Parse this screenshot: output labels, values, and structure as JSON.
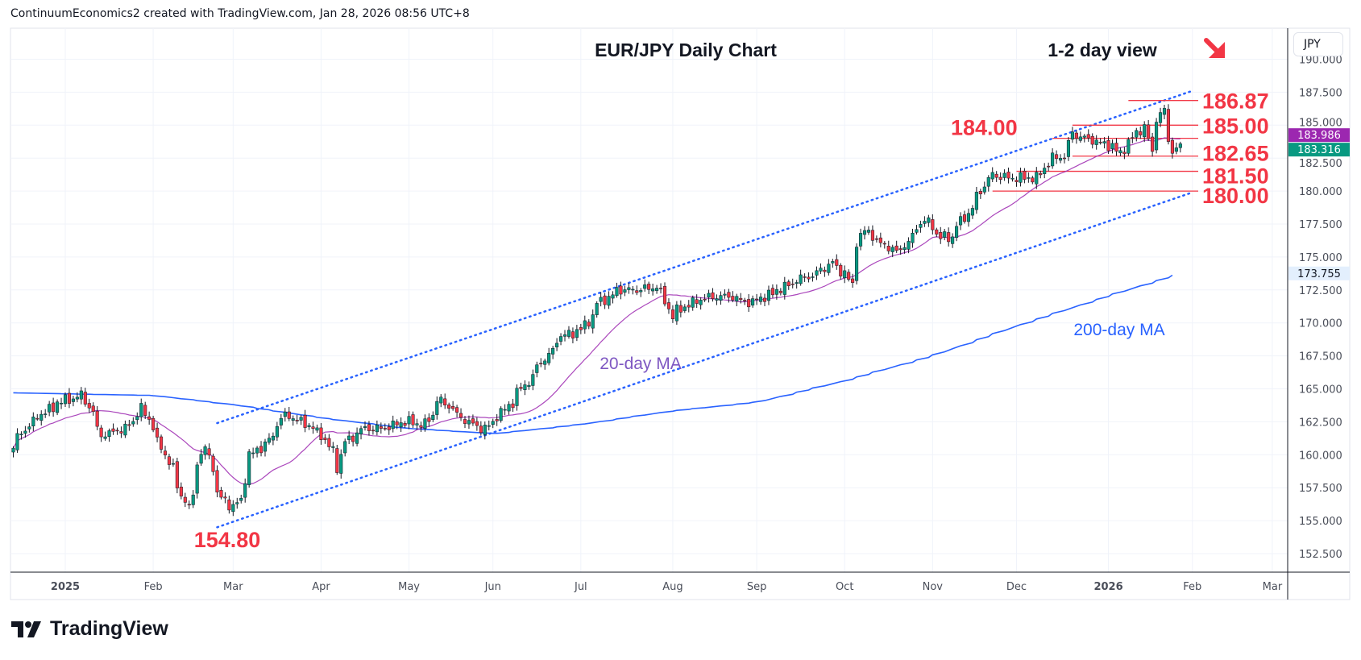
{
  "header": {
    "text": "ContinuumEconomics2 created with TradingView.com, Jan 28, 2026 08:56 UTC+8"
  },
  "currency_button": "JPY",
  "logo_text": "TradingView",
  "colors": {
    "up": "#089981",
    "down": "#f23645",
    "ma20": "#9c27b0",
    "ma200": "#2962ff",
    "level": "#f23645",
    "channel": "#2962ff"
  },
  "chart_data": {
    "type": "candlestick",
    "title": "EUR/JPY Daily Chart",
    "subtitle": "1-2 day view",
    "view_icon": "down-right-arrow-icon",
    "ylim": [
      152.5,
      190
    ],
    "y_ticks": [
      "190.000",
      "187.500",
      "185.000",
      "182.500",
      "180.000",
      "177.500",
      "175.000",
      "172.500",
      "170.000",
      "167.500",
      "165.000",
      "162.500",
      "160.000",
      "157.500",
      "155.000",
      "152.500"
    ],
    "x_ticks": [
      {
        "label": "2025",
        "date": "2025-01-01",
        "bold": true
      },
      {
        "label": "Feb",
        "date": "2025-02-01"
      },
      {
        "label": "Mar",
        "date": "2025-03-01"
      },
      {
        "label": "Apr",
        "date": "2025-04-01"
      },
      {
        "label": "May",
        "date": "2025-05-01"
      },
      {
        "label": "Jun",
        "date": "2025-06-01"
      },
      {
        "label": "Jul",
        "date": "2025-07-01"
      },
      {
        "label": "Aug",
        "date": "2025-08-01"
      },
      {
        "label": "Sep",
        "date": "2025-09-01"
      },
      {
        "label": "Oct",
        "date": "2025-10-01"
      },
      {
        "label": "Nov",
        "date": "2025-11-01"
      },
      {
        "label": "Dec",
        "date": "2025-12-01"
      },
      {
        "label": "2026",
        "date": "2026-01-01",
        "bold": true
      },
      {
        "label": "Feb",
        "date": "2026-02-01"
      },
      {
        "label": "Mar",
        "date": "2026-03-01"
      }
    ],
    "start_date": "2024-12-13",
    "close_path": [
      [
        "2024-12-13",
        160.5
      ],
      [
        "2024-12-20",
        162.5
      ],
      [
        "2024-12-30",
        164.0
      ],
      [
        "2025-01-07",
        164.5
      ],
      [
        "2025-01-14",
        161.5
      ],
      [
        "2025-01-22",
        162.0
      ],
      [
        "2025-01-28",
        163.5
      ],
      [
        "2025-02-04",
        160.5
      ],
      [
        "2025-02-10",
        157.5
      ],
      [
        "2025-02-13",
        156.0
      ],
      [
        "2025-02-17",
        159.5
      ],
      [
        "2025-02-19",
        160.5
      ],
      [
        "2025-02-24",
        157.0
      ],
      [
        "2025-02-28",
        156.0
      ],
      [
        "2025-03-04",
        156.5
      ],
      [
        "2025-03-06",
        160.0
      ],
      [
        "2025-03-11",
        160.5
      ],
      [
        "2025-03-19",
        163.0
      ],
      [
        "2025-03-25",
        162.5
      ],
      [
        "2025-04-01",
        161.5
      ],
      [
        "2025-04-07",
        159.0
      ],
      [
        "2025-04-09",
        161.0
      ],
      [
        "2025-04-16",
        162.0
      ],
      [
        "2025-04-22",
        162.0
      ],
      [
        "2025-04-30",
        162.5
      ],
      [
        "2025-05-07",
        162.3
      ],
      [
        "2025-05-12",
        164.2
      ],
      [
        "2025-05-19",
        163.0
      ],
      [
        "2025-05-23",
        162.3
      ],
      [
        "2025-05-28",
        162.0
      ],
      [
        "2025-06-03",
        163.2
      ],
      [
        "2025-06-10",
        165.0
      ],
      [
        "2025-06-17",
        167.0
      ],
      [
        "2025-06-24",
        169.0
      ],
      [
        "2025-07-01",
        169.5
      ],
      [
        "2025-07-07",
        171.5
      ],
      [
        "2025-07-14",
        172.5
      ],
      [
        "2025-07-21",
        172.5
      ],
      [
        "2025-07-28",
        172.8
      ],
      [
        "2025-08-01",
        170.5
      ],
      [
        "2025-08-08",
        171.5
      ],
      [
        "2025-08-15",
        172.0
      ],
      [
        "2025-08-22",
        172.0
      ],
      [
        "2025-08-29",
        171.5
      ],
      [
        "2025-09-08",
        172.5
      ],
      [
        "2025-09-15",
        173.3
      ],
      [
        "2025-09-22",
        173.8
      ],
      [
        "2025-09-26",
        174.6
      ],
      [
        "2025-10-01",
        173.8
      ],
      [
        "2025-10-03",
        172.8
      ],
      [
        "2025-10-06",
        176.2
      ],
      [
        "2025-10-08",
        177.0
      ],
      [
        "2025-10-14",
        176.0
      ],
      [
        "2025-10-20",
        175.3
      ],
      [
        "2025-10-24",
        176.5
      ],
      [
        "2025-10-29",
        177.8
      ],
      [
        "2025-11-04",
        176.5
      ],
      [
        "2025-11-07",
        176.5
      ],
      [
        "2025-11-12",
        178.0
      ],
      [
        "2025-11-18",
        180.0
      ],
      [
        "2025-11-21",
        181.3
      ],
      [
        "2025-11-27",
        181.0
      ],
      [
        "2025-12-03",
        181.0
      ],
      [
        "2025-12-08",
        181.0
      ],
      [
        "2025-12-12",
        182.5
      ],
      [
        "2025-12-17",
        182.6
      ],
      [
        "2025-12-19",
        184.5
      ],
      [
        "2025-12-24",
        184.0
      ],
      [
        "2025-12-31",
        183.6
      ],
      [
        "2026-01-06",
        182.9
      ],
      [
        "2026-01-09",
        184.0
      ],
      [
        "2026-01-14",
        184.8
      ],
      [
        "2026-01-16",
        183.0
      ],
      [
        "2026-01-19",
        185.5
      ],
      [
        "2026-01-21",
        186.1
      ],
      [
        "2026-01-22",
        183.9
      ],
      [
        "2026-01-23",
        183.0
      ],
      [
        "2026-01-27",
        183.3
      ]
    ],
    "ma200_path": [
      [
        "2024-12-13",
        164.7
      ],
      [
        "2025-02-01",
        164.5
      ],
      [
        "2025-03-01",
        163.8
      ],
      [
        "2025-04-01",
        162.8
      ],
      [
        "2025-05-01",
        162.0
      ],
      [
        "2025-06-01",
        161.6
      ],
      [
        "2025-07-01",
        162.3
      ],
      [
        "2025-08-01",
        163.3
      ],
      [
        "2025-09-01",
        164.0
      ],
      [
        "2025-10-01",
        165.6
      ],
      [
        "2025-11-01",
        167.5
      ],
      [
        "2025-12-01",
        169.8
      ],
      [
        "2026-01-01",
        172.0
      ],
      [
        "2026-01-27",
        173.755
      ]
    ],
    "channel": {
      "upper": [
        [
          "2025-02-24",
          162.4
        ],
        [
          "2026-01-30",
          187.6
        ]
      ],
      "lower": [
        [
          "2025-02-24",
          154.5
        ],
        [
          "2026-01-30",
          179.9
        ]
      ]
    },
    "levels": [
      {
        "value": 186.87,
        "label": "186.87",
        "from": "2026-01-08"
      },
      {
        "value": 185.0,
        "label": "185.00",
        "from": "2025-12-19"
      },
      {
        "value": 184.0,
        "label": "184.00",
        "from": "2025-12-12"
      },
      {
        "value": 182.65,
        "label": "182.65",
        "from": "2025-12-19"
      },
      {
        "value": 181.5,
        "label": "181.50",
        "from": "2025-12-01"
      },
      {
        "value": 180.0,
        "label": "180.00",
        "from": "2025-11-21"
      }
    ],
    "low_label": {
      "value": 154.8,
      "label": "154.80"
    },
    "ma20_label": "20-day MA",
    "ma200_label": "200-day MA",
    "price_tags": [
      {
        "label": "183.986",
        "color": "#9c27b0",
        "value": 184.0
      },
      {
        "label": "183.316",
        "color": "#089981",
        "value": 183.316
      },
      {
        "label": "173.755",
        "color": "#2962ff",
        "value": 173.755,
        "light": true
      }
    ]
  }
}
